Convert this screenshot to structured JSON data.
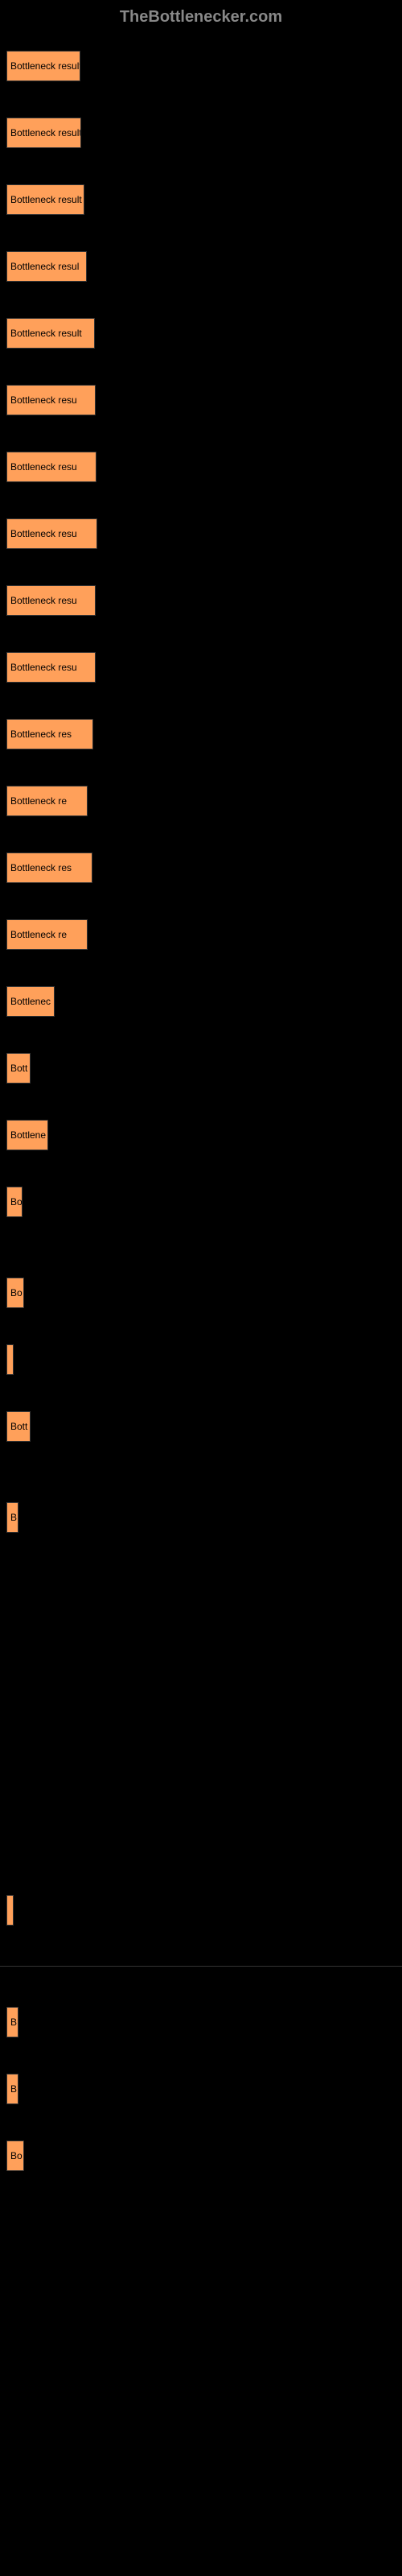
{
  "header": "TheBottlenecker.com",
  "bars": [
    {
      "label": "Bottleneck result",
      "width": 92,
      "show_divider": false
    },
    {
      "label": "Bottleneck result",
      "width": 93,
      "show_divider": false
    },
    {
      "label": "Bottleneck result",
      "width": 97,
      "show_divider": false
    },
    {
      "label": "Bottleneck resul",
      "width": 100,
      "show_divider": false
    },
    {
      "label": "Bottleneck result",
      "width": 110,
      "show_divider": false
    },
    {
      "label": "Bottleneck resu",
      "width": 111,
      "show_divider": false
    },
    {
      "label": "Bottleneck resu",
      "width": 112,
      "show_divider": false
    },
    {
      "label": "Bottleneck resu",
      "width": 113,
      "show_divider": false
    },
    {
      "label": "Bottleneck resu",
      "width": 111,
      "show_divider": false
    },
    {
      "label": "Bottleneck resu",
      "width": 111,
      "show_divider": false
    },
    {
      "label": "Bottleneck res",
      "width": 108,
      "show_divider": false
    },
    {
      "label": "Bottleneck re",
      "width": 101,
      "show_divider": false
    },
    {
      "label": "Bottleneck res",
      "width": 107,
      "show_divider": false
    },
    {
      "label": "Bottleneck re",
      "width": 101,
      "show_divider": false
    },
    {
      "label": "Bottlenec",
      "width": 60,
      "show_divider": false
    },
    {
      "label": "Bott",
      "width": 30,
      "show_divider": false
    },
    {
      "label": "Bottlene",
      "width": 52,
      "show_divider": false
    },
    {
      "label": "Bo",
      "width": 20,
      "show_divider": false
    },
    {
      "label": "Bo",
      "width": 22,
      "show_divider": false,
      "extra_margin": 75
    },
    {
      "label": "",
      "width": 9,
      "show_divider": false
    },
    {
      "label": "Bott",
      "width": 30,
      "show_divider": false
    },
    {
      "label": "B",
      "width": 15,
      "show_divider": false,
      "extra_margin": 75
    },
    {
      "label": "",
      "width": 9,
      "show_divider": true,
      "extra_margin": 450
    },
    {
      "label": "B",
      "width": 15,
      "show_divider": false
    },
    {
      "label": "B",
      "width": 15,
      "show_divider": false
    },
    {
      "label": "Bo",
      "width": 22,
      "show_divider": false
    }
  ],
  "bar_color": "#ffa05a",
  "background_color": "#000000",
  "text_color": "#000000",
  "header_color": "#888888"
}
